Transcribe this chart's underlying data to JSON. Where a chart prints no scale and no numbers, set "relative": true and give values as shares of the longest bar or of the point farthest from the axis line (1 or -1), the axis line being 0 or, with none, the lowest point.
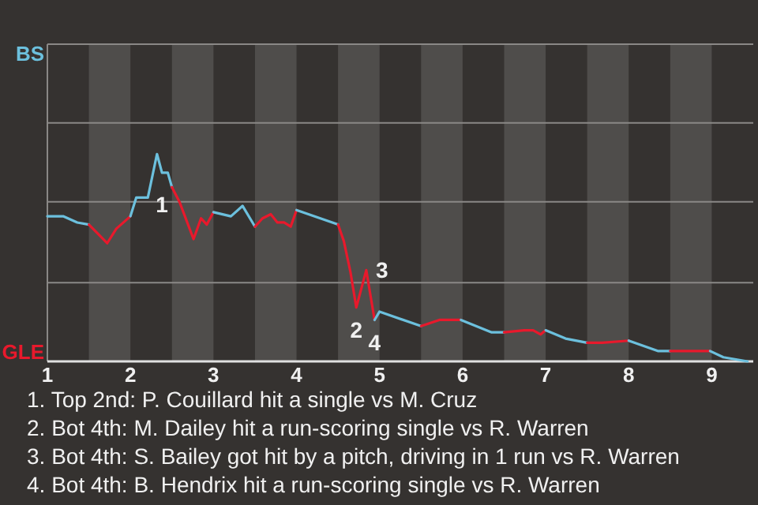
{
  "chart_data": {
    "type": "line",
    "relative": true,
    "series": [
      {
        "color": "#6cc0dd",
        "x": [
          1.0,
          1.19,
          1.36,
          1.5
        ],
        "values": [
          0.7,
          0.7,
          0.67,
          0.66
        ]
      },
      {
        "color": "#e8192c",
        "x": [
          1.5,
          1.72,
          1.83,
          2.0
        ],
        "values": [
          0.66,
          0.57,
          0.64,
          0.7
        ]
      },
      {
        "color": "#6cc0dd",
        "x": [
          2.0,
          2.07,
          2.21,
          2.32,
          2.38,
          2.45,
          2.5
        ],
        "values": [
          0.7,
          0.79,
          0.79,
          1,
          0.91,
          0.91,
          0.84
        ]
      },
      {
        "color": "#e8192c",
        "x": [
          2.5,
          2.59,
          2.76,
          2.85,
          2.92,
          3.0
        ],
        "values": [
          0.84,
          0.77,
          0.59,
          0.69,
          0.66,
          0.72
        ]
      },
      {
        "color": "#6cc0dd",
        "x": [
          3.0,
          3.21,
          3.35,
          3.5
        ],
        "values": [
          0.72,
          0.7,
          0.75,
          0.65
        ]
      },
      {
        "color": "#e8192c",
        "x": [
          3.5,
          3.59,
          3.69,
          3.77,
          3.85,
          3.93,
          4.0
        ],
        "values": [
          0.65,
          0.69,
          0.71,
          0.67,
          0.67,
          0.65,
          0.73
        ]
      },
      {
        "color": "#6cc0dd",
        "x": [
          4.0,
          4.5
        ],
        "values": [
          0.73,
          0.66
        ]
      },
      {
        "color": "#e8192c",
        "x": [
          4.5,
          4.57,
          4.65,
          4.72,
          4.84,
          4.94
        ],
        "values": [
          0.66,
          0.58,
          0.43,
          0.26,
          0.44,
          0.2
        ]
      },
      {
        "color": "#6cc0dd",
        "x": [
          4.94,
          5.0,
          5.5
        ],
        "values": [
          0.2,
          0.24,
          0.17
        ]
      },
      {
        "color": "#e8192c",
        "x": [
          5.5,
          5.72,
          5.98
        ],
        "values": [
          0.17,
          0.2,
          0.2
        ]
      },
      {
        "color": "#6cc0dd",
        "x": [
          5.98,
          6.35,
          6.5
        ],
        "values": [
          0.2,
          0.14,
          0.14
        ]
      },
      {
        "color": "#e8192c",
        "x": [
          6.5,
          6.74,
          6.85,
          6.94,
          7.0
        ],
        "values": [
          0.14,
          0.15,
          0.15,
          0.13,
          0.15
        ]
      },
      {
        "color": "#6cc0dd",
        "x": [
          7.0,
          7.24,
          7.5
        ],
        "values": [
          0.15,
          0.11,
          0.09
        ]
      },
      {
        "color": "#e8192c",
        "x": [
          7.5,
          7.68,
          8.0
        ],
        "values": [
          0.09,
          0.09,
          0.1
        ]
      },
      {
        "color": "#6cc0dd",
        "x": [
          8.0,
          8.35,
          8.5
        ],
        "values": [
          0.1,
          0.05,
          0.05
        ]
      },
      {
        "color": "#e8192c",
        "x": [
          8.5,
          8.9,
          8.98
        ],
        "values": [
          0.05,
          0.05,
          0.05
        ]
      },
      {
        "color": "#6cc0dd",
        "x": [
          8.98,
          9.14,
          9.43
        ],
        "values": [
          0.05,
          0.02,
          0
        ]
      }
    ],
    "xlim": [
      1,
      9.5
    ],
    "xticks": [
      1,
      2,
      3,
      4,
      5,
      6,
      7,
      8,
      9
    ],
    "ref_lines": [
      {
        "axis": "y",
        "value": 0.38,
        "color": "#8a8886"
      },
      {
        "axis": "y",
        "value": 0.77,
        "color": "#8a8886"
      },
      {
        "axis": "y",
        "value": 1.15,
        "color": "#8a8886"
      },
      {
        "axis": "y",
        "value": 1.53,
        "label": "BS",
        "color": "#8a8886"
      }
    ],
    "bands": [
      {
        "axis": "x",
        "from": 1.5,
        "to": 2,
        "color": "#4f4d4b"
      },
      {
        "axis": "x",
        "from": 2.5,
        "to": 3,
        "color": "#4f4d4b"
      },
      {
        "axis": "x",
        "from": 3.5,
        "to": 4,
        "color": "#4f4d4b"
      },
      {
        "axis": "x",
        "from": 4.5,
        "to": 5,
        "color": "#4f4d4b"
      },
      {
        "axis": "x",
        "from": 5.5,
        "to": 6,
        "color": "#4f4d4b"
      },
      {
        "axis": "x",
        "from": 6.5,
        "to": 7,
        "color": "#4f4d4b"
      },
      {
        "axis": "x",
        "from": 7.5,
        "to": 8,
        "color": "#4f4d4b"
      },
      {
        "axis": "x",
        "from": 8.5,
        "to": 9,
        "color": "#4f4d4b"
      }
    ],
    "annotations": [
      {
        "text": "1",
        "x": 2.38,
        "y": 0.91
      },
      {
        "text": "2",
        "x": 4.72,
        "y": 0.26
      },
      {
        "text": "3",
        "x": 4.84,
        "y": 0.44
      },
      {
        "text": "4",
        "x": 4.94,
        "y": 0.2
      },
      "GLE",
      "1. Top 2nd: P. Couillard hit a single vs M. Cruz",
      "2. Bot 4th: M. Dailey hit a run-scoring single vs R. Warren",
      "3. Bot 4th: S. Bailey got hit by a pitch, driving in 1 run vs R. Warren",
      "4. Bot 4th: B. Hendrix hit a run-scoring single vs R. Warren"
    ]
  }
}
